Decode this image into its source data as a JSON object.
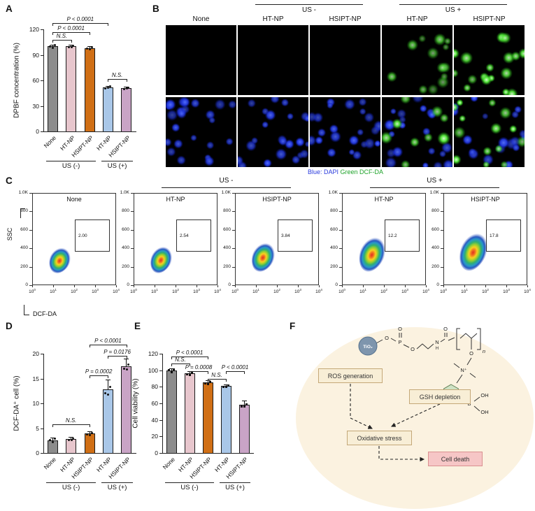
{
  "figure": {
    "background": "#ffffff"
  },
  "panels": {
    "A": {
      "label": "A"
    },
    "B": {
      "label": "B",
      "groups": [
        {
          "label": "US -"
        },
        {
          "label": "US +"
        }
      ],
      "columns": [
        "None",
        "HT-NP",
        "HSIPT-NP",
        "HT-NP",
        "HSIPT-NP"
      ],
      "caption": [
        {
          "text": "Blue: DAPI",
          "color": "#2b3cdd"
        },
        {
          "text": "Green DCF-DA",
          "color": "#1fa32a"
        }
      ],
      "rows": [
        {
          "stain": "DCF-DA (green)",
          "cells": [
            "none",
            "none",
            "none",
            "green-sparse",
            "green-bright"
          ]
        },
        {
          "stain": "DAPI (blue)",
          "cells": [
            "blue",
            "blue",
            "blue",
            "blue-green",
            "blue-green-bright"
          ]
        }
      ]
    },
    "C": {
      "label": "C"
    },
    "D": {
      "label": "D"
    },
    "E": {
      "label": "E"
    },
    "F": {
      "label": "F",
      "boxes": {
        "ros": "ROS generation",
        "gsh": "GSH depletion",
        "ox": "Oxidative stress",
        "death": "Cell death"
      },
      "chem": {
        "tio2": "TiO₂",
        "o": "O",
        "p": "P",
        "n_atom": "N",
        "h": "H",
        "n_sub": "n",
        "nplus": "N⁺",
        "b": "B",
        "oh": "OH"
      }
    }
  },
  "chart_data": [
    {
      "id": "dpbf",
      "type": "bar",
      "panel": "A",
      "ylabel": "DPBF concentration (%)",
      "ylim": [
        0,
        120
      ],
      "yticks": [
        0,
        30,
        60,
        90,
        120
      ],
      "categories": [
        "None",
        "HT-NP",
        "HSIPT-NP",
        "HT-NP",
        "HSIPT-NP"
      ],
      "values": [
        100,
        100,
        98,
        52,
        51
      ],
      "errors": [
        2,
        2,
        2,
        1.5,
        1.5
      ],
      "colors": [
        "#8c8c8c",
        "#e7c6cd",
        "#d06f15",
        "#a9c7e8",
        "#c9a4c6"
      ],
      "groups": [
        {
          "label": "US (-)",
          "from": 0,
          "to": 2
        },
        {
          "label": "US (+)",
          "from": 3,
          "to": 4
        }
      ],
      "sig": [
        {
          "from": 0,
          "to": 1,
          "label": "N.S.",
          "y": 108
        },
        {
          "from": 0,
          "to": 2,
          "label": "P < 0.0001",
          "y": 117
        },
        {
          "from": 0,
          "to": 3,
          "label": "P < 0.0001",
          "y": 127
        },
        {
          "from": 3,
          "to": 4,
          "label": "N.S.",
          "y": 62
        }
      ]
    },
    {
      "id": "flow",
      "type": "flow-cytometry",
      "panel": "C",
      "ylabel": "SSC",
      "xlabel": "DCF-DA",
      "yticks": [
        "1.0K",
        "800",
        "600",
        "400",
        "200",
        "0"
      ],
      "xticks": [
        "10^0",
        "10^1",
        "10^2",
        "10^3",
        "10^4"
      ],
      "groups": [
        {
          "label": "US -",
          "from": 1,
          "to": 2
        },
        {
          "label": "US +",
          "from": 3,
          "to": 4
        }
      ],
      "plots": [
        {
          "title": "None",
          "gate_value": "2.00"
        },
        {
          "title": "HT-NP",
          "gate_value": "2.54"
        },
        {
          "title": "HSIPT-NP",
          "gate_value": "3.84"
        },
        {
          "title": "HT-NP",
          "gate_value": "12.2"
        },
        {
          "title": "HSIPT-NP",
          "gate_value": "17.8"
        }
      ]
    },
    {
      "id": "dcf",
      "type": "bar",
      "panel": "D",
      "ylabel": "DCF-DA⁺ cell (%)",
      "ylim": [
        0,
        20
      ],
      "yticks": [
        0,
        5,
        10,
        15,
        20
      ],
      "categories": [
        "None",
        "HT-NP",
        "HSIPT-NP",
        "HT-NP",
        "HSIPT-NP"
      ],
      "values": [
        2.6,
        2.8,
        3.9,
        12.8,
        17.5
      ],
      "errors": [
        0.5,
        0.5,
        0.4,
        2.0,
        1.5
      ],
      "colors": [
        "#8c8c8c",
        "#e7c6cd",
        "#d06f15",
        "#a9c7e8",
        "#c9a4c6"
      ],
      "groups": [
        {
          "label": "US (-)",
          "from": 0,
          "to": 2
        },
        {
          "label": "US (+)",
          "from": 3,
          "to": 4
        }
      ],
      "sig": [
        {
          "from": 0,
          "to": 2,
          "label": "N.S.",
          "y": 5.8
        },
        {
          "from": 2,
          "to": 3,
          "label": "P = 0.0002",
          "y": 15.6
        },
        {
          "from": 3,
          "to": 4,
          "label": "P = 0.0176",
          "y": 19.6
        },
        {
          "from": 2,
          "to": 4,
          "label": "P < 0.0001",
          "y": 21.8
        }
      ]
    },
    {
      "id": "viability",
      "type": "bar",
      "panel": "E",
      "ylabel": "Cell viability (%)",
      "ylim": [
        0,
        120
      ],
      "yticks": [
        0,
        20,
        40,
        60,
        80,
        100,
        120
      ],
      "categories": [
        "None",
        "HT-NP",
        "HSIPT-NP",
        "HT-NP",
        "HSIPT-NP"
      ],
      "values": [
        100,
        96,
        85,
        81,
        58
      ],
      "errors": [
        2,
        3,
        3,
        2,
        5
      ],
      "colors": [
        "#8c8c8c",
        "#e7c6cd",
        "#d06f15",
        "#a9c7e8",
        "#c9a4c6"
      ],
      "groups": [
        {
          "label": "US (-)",
          "from": 0,
          "to": 2
        },
        {
          "label": "US (+)",
          "from": 3,
          "to": 4
        }
      ],
      "sig": [
        {
          "from": 0,
          "to": 1,
          "label": "N.S.",
          "y": 108
        },
        {
          "from": 0,
          "to": 2,
          "label": "P < 0.0001",
          "y": 117
        },
        {
          "from": 1,
          "to": 2,
          "label": "P = 0.0008",
          "y": 99
        },
        {
          "from": 2,
          "to": 3,
          "label": "N.S.",
          "y": 90
        },
        {
          "from": 3,
          "to": 4,
          "label": "P < 0.0001",
          "y": 99
        }
      ]
    }
  ]
}
